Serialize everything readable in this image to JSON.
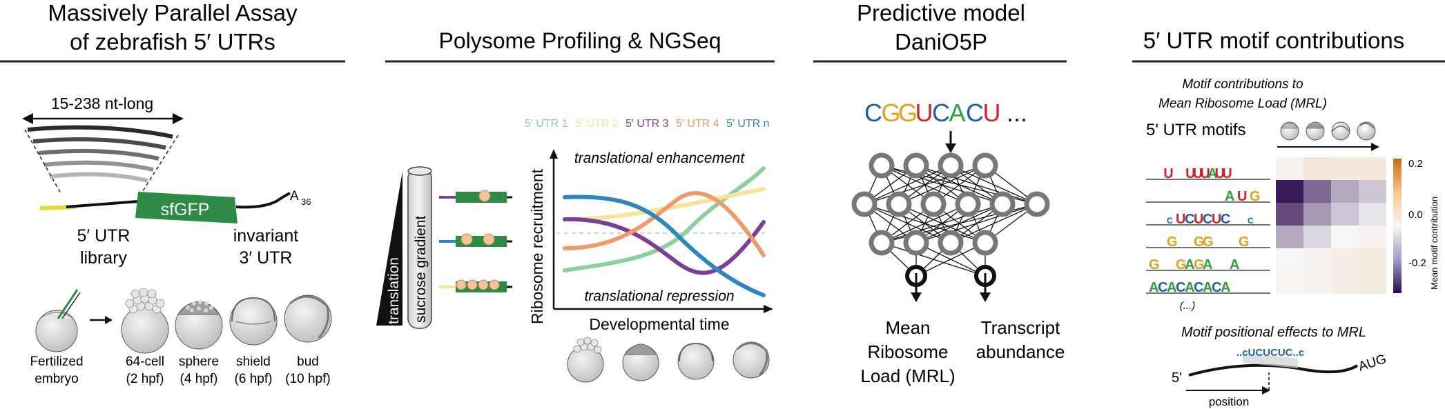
{
  "panel1": {
    "title_line1": "Massively Parallel Assay",
    "title_line2": "of zebrafish 5′ UTRs",
    "length_label": "15-238 nt-long",
    "gene_label": "sfGFP",
    "polya_label": "A",
    "polya_sub": "36",
    "utr5_line1": "5′ UTR",
    "utr5_line2": "library",
    "utr3_line1": "invariant",
    "utr3_line2": "3′ UTR",
    "stages": [
      {
        "line1": "Fertilized",
        "line2": "embryo"
      },
      {
        "line1": "64-cell",
        "line2": "(2 hpf)"
      },
      {
        "line1": "sphere",
        "line2": "(4 hpf)"
      },
      {
        "line1": "shield",
        "line2": "(6 hpf)"
      },
      {
        "line1": "bud",
        "line2": "(10 hpf)"
      }
    ]
  },
  "panel2": {
    "title": "Polysome Profiling & NGSeq",
    "gradient_label": "sucrose gradient",
    "translation_label": "translation",
    "legend": [
      {
        "label": "5′ UTR 1",
        "color": "#8fcf9f"
      },
      {
        "label": "5′ UTR 2",
        "color": "#f7e49a"
      },
      {
        "label": "5′ UTR 3",
        "color": "#7b3f98"
      },
      {
        "label": "5′ UTR 4",
        "color": "#ef9a6a"
      },
      {
        "label": "5′ UTR n",
        "color": "#2e86c1"
      }
    ],
    "y_axis": "Ribosome recruitment",
    "x_axis": "Developmental time",
    "enhancement": "translational enhancement",
    "repression": "translational repression"
  },
  "panel3": {
    "title_line1": "Predictive model",
    "title_line2": "DaniO5P",
    "sequence": [
      {
        "ch": "C",
        "color": "#1f5fa8"
      },
      {
        "ch": "G",
        "color": "#e0a21a"
      },
      {
        "ch": "G",
        "color": "#e0a21a"
      },
      {
        "ch": "U",
        "color": "#d4202a"
      },
      {
        "ch": "C",
        "color": "#1f5fa8"
      },
      {
        "ch": "A",
        "color": "#2f9e3f"
      },
      {
        "ch": "C",
        "color": "#1f5fa8"
      },
      {
        "ch": "U",
        "color": "#d4202a"
      }
    ],
    "ellipsis": "...",
    "output1_line1": "Mean",
    "output1_line2": "Ribosome",
    "output1_line3": "Load (MRL)",
    "output2_line1": "Transcript",
    "output2_line2": "abundance"
  },
  "panel4": {
    "title": "5′ UTR motif contributions",
    "subtitle_line1": "Motif contributions to",
    "subtitle_line2": "Mean Ribosome Load (MRL)",
    "motifs_label": "5' UTR motifs",
    "more_label": "(...)",
    "colorbar_title": "Mean motif contribution",
    "colorbar_ticks": [
      "0.2",
      "0.0",
      "-0.2"
    ],
    "positional_title": "Motif positional effects to MRL",
    "five_prime": "5'",
    "aug": "AUG",
    "position": "position",
    "motif_logos": [
      "..U..UUUAUU.....",
      "AUG",
      "..cUCUCUC..c",
      "..G..GG...G",
      "G..GAGA..A",
      "ACACACACA"
    ],
    "heatmap": [
      [
        0.02,
        0.06,
        0.05,
        0.05
      ],
      [
        -0.28,
        -0.18,
        -0.1,
        -0.06
      ],
      [
        -0.22,
        -0.12,
        -0.06,
        -0.02
      ],
      [
        -0.1,
        -0.04,
        0.0,
        0.02
      ],
      [
        0.0,
        0.02,
        0.03,
        0.04
      ],
      [
        0.01,
        0.02,
        0.03,
        0.04
      ]
    ]
  }
}
